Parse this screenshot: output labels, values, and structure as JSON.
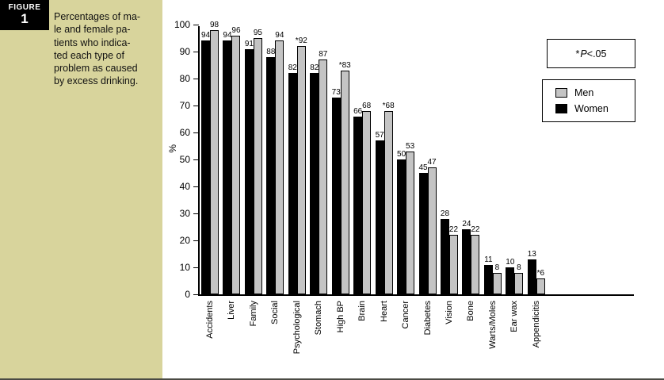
{
  "figure": {
    "tag": "FIGURE",
    "number": "1",
    "caption_lines": [
      "Percentages of ma-",
      "le and female pa-",
      "tients who indica-",
      "ted each type of",
      "problem as caused",
      "by excess drinking."
    ]
  },
  "chart_data": {
    "type": "bar",
    "title": "",
    "xlabel": "",
    "ylabel": "%",
    "ylim": [
      0,
      100
    ],
    "yticks": [
      0,
      10,
      20,
      30,
      40,
      50,
      60,
      70,
      80,
      90,
      100
    ],
    "grid": false,
    "legend_position": "top-right",
    "categories": [
      "Accidents",
      "Liver",
      "Family",
      "Social",
      "Psychological",
      "Stomach",
      "High BP",
      "Brain",
      "Heart",
      "Cancer",
      "Diabetes",
      "Vision",
      "Bone",
      "Warts/Moles",
      "Ear wax",
      "Appendicitis"
    ],
    "series": [
      {
        "name": "Women",
        "color": "#000000",
        "values": [
          94,
          94,
          91,
          88,
          82,
          82,
          73,
          66,
          57,
          50,
          45,
          28,
          24,
          11,
          10,
          13
        ],
        "starred": [
          false,
          false,
          false,
          false,
          false,
          false,
          false,
          false,
          false,
          false,
          false,
          false,
          false,
          false,
          false,
          false
        ]
      },
      {
        "name": "Men",
        "color": "#c4c4c4",
        "values": [
          98,
          96,
          95,
          94,
          92,
          87,
          83,
          68,
          68,
          53,
          47,
          22,
          22,
          8,
          8,
          6
        ],
        "starred": [
          false,
          false,
          false,
          false,
          true,
          false,
          true,
          false,
          true,
          false,
          false,
          false,
          false,
          false,
          false,
          true
        ]
      }
    ],
    "legend": {
      "note_star": "*",
      "note_p": "P",
      "note_rest": "<.05",
      "entries": [
        {
          "label": "Men",
          "color": "#c4c4c4"
        },
        {
          "label": "Women",
          "color": "#000000"
        }
      ]
    }
  }
}
